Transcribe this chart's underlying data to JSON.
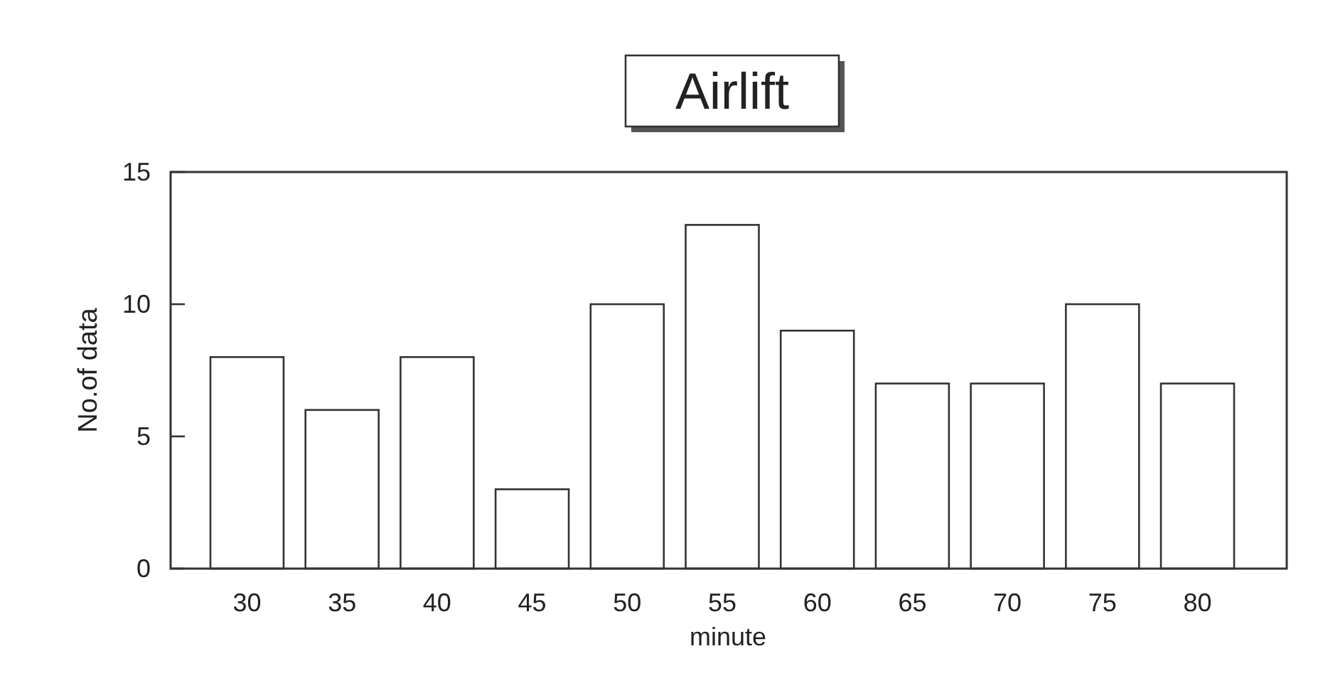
{
  "chart_data": {
    "type": "bar",
    "title": "Airlift",
    "xlabel": "minute",
    "ylabel": "No.of data",
    "categories": [
      "30",
      "35",
      "40",
      "45",
      "50",
      "55",
      "60",
      "65",
      "70",
      "75",
      "80"
    ],
    "values": [
      8,
      6,
      8,
      3,
      10,
      13,
      9,
      7,
      7,
      10,
      7
    ],
    "color": "#ffffff",
    "ylim": [
      0,
      15
    ],
    "yticks": [
      0,
      5,
      10,
      15
    ],
    "grid": false
  }
}
